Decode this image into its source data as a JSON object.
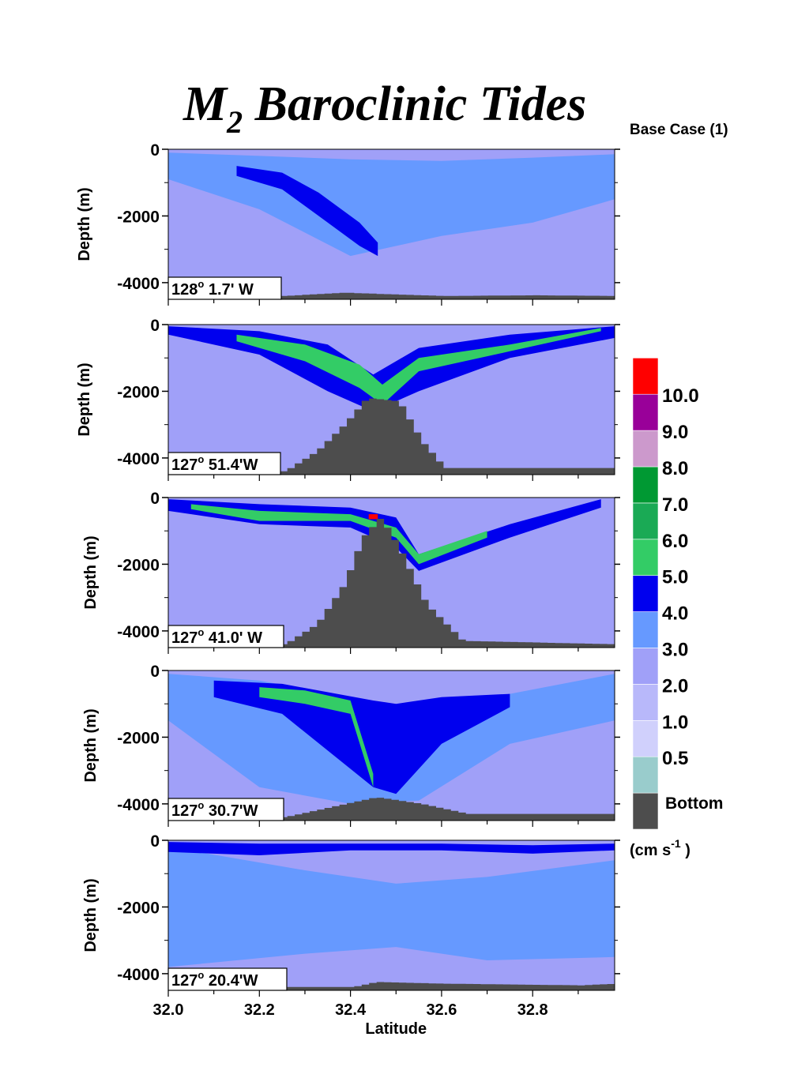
{
  "title": {
    "main": "M",
    "subscript": "2",
    "rest": " Baroclinic Tides"
  },
  "subtitle": "Base Case (1)",
  "colors": {
    "bottom": "#4d4d4d",
    "background": "#a0a0f8"
  },
  "colorbar": {
    "unit_label": "(cm s",
    "unit_exponent": "-1",
    "unit_close": " )",
    "bottom_label": "Bottom",
    "bins": [
      {
        "label": "",
        "color": "#4d4d4d"
      },
      {
        "label": "",
        "color": "#99cccc"
      },
      {
        "label": "0.5",
        "color": "#d0d0fc"
      },
      {
        "label": "1.0",
        "color": "#b8b8fa"
      },
      {
        "label": "2.0",
        "color": "#a0a0f8"
      },
      {
        "label": "3.0",
        "color": "#6699ff"
      },
      {
        "label": "4.0",
        "color": "#0000ee"
      },
      {
        "label": "5.0",
        "color": "#33cc66"
      },
      {
        "label": "6.0",
        "color": "#1aaa55"
      },
      {
        "label": "7.0",
        "color": "#009933"
      },
      {
        "label": "8.0",
        "color": "#cc99cc"
      },
      {
        "label": "9.0",
        "color": "#990099"
      },
      {
        "label": "10.0",
        "color": "#ff0000"
      }
    ]
  },
  "chart_data": [
    {
      "type": "heatmap",
      "xlabel": "",
      "ylabel": "Depth (m)",
      "xlim": [
        32.0,
        32.98
      ],
      "ylim": [
        -4500,
        0
      ],
      "yticks": [
        "0",
        "-2000",
        "-4000"
      ],
      "section_label": {
        "deg": "128",
        "rest": " 1.7' W"
      },
      "bathymetry": {
        "lat": [
          32.0,
          32.25,
          32.38,
          32.48,
          32.6,
          32.8,
          32.98
        ],
        "depth": [
          -4400,
          -4400,
          -4300,
          -4350,
          -4400,
          -4380,
          -4400
        ]
      },
      "bands": [
        {
          "level": "3.0",
          "lat": [
            32.0,
            32.2,
            32.4,
            32.6,
            32.8,
            32.98
          ],
          "top": [
            -100,
            -200,
            -300,
            -350,
            -250,
            -150
          ],
          "bottom": [
            -900,
            -1800,
            -3200,
            -2600,
            -2200,
            -1500
          ]
        },
        {
          "level": "4.0",
          "lat": [
            32.15,
            32.25,
            32.33,
            32.42,
            32.46
          ],
          "top": [
            -500,
            -700,
            -1300,
            -2200,
            -2800
          ],
          "bottom": [
            -800,
            -1200,
            -2000,
            -2900,
            -3200
          ]
        }
      ]
    },
    {
      "type": "heatmap",
      "xlabel": "",
      "ylabel": "Depth (m)",
      "xlim": [
        32.0,
        32.98
      ],
      "ylim": [
        -4500,
        0
      ],
      "yticks": [
        "0",
        "-2000",
        "-4000"
      ],
      "section_label": {
        "deg": "127",
        "rest": " 51.4'W"
      },
      "bathymetry": {
        "lat": [
          32.0,
          32.25,
          32.32,
          32.38,
          32.43,
          32.5,
          32.55,
          32.6,
          32.98
        ],
        "depth": [
          -4400,
          -4400,
          -3800,
          -3000,
          -2200,
          -2300,
          -3500,
          -4300,
          -4300
        ]
      },
      "bands": [
        {
          "level": "4.0",
          "lat": [
            32.0,
            32.2,
            32.35,
            32.45,
            32.55,
            32.75,
            32.98
          ],
          "top": [
            -50,
            -200,
            -600,
            -1500,
            -700,
            -300,
            -50
          ],
          "bottom": [
            -300,
            -900,
            -2000,
            -2600,
            -2000,
            -1000,
            -400
          ]
        },
        {
          "level": "5.0",
          "lat": [
            32.15,
            32.3,
            32.42,
            32.47,
            32.55,
            32.75,
            32.95
          ],
          "top": [
            -300,
            -600,
            -1200,
            -1800,
            -1000,
            -600,
            -100
          ],
          "bottom": [
            -500,
            -1100,
            -1900,
            -2400,
            -1400,
            -800,
            -200
          ]
        }
      ]
    },
    {
      "type": "heatmap",
      "xlabel": "",
      "ylabel": "Depth (m)",
      "xlim": [
        32.0,
        32.98
      ],
      "ylim": [
        -4500,
        0
      ],
      "yticks": [
        "0",
        "-2000",
        "-4000"
      ],
      "section_label": {
        "deg": "127",
        "rest": " 41.0' W"
      },
      "bathymetry": {
        "lat": [
          32.0,
          32.25,
          32.32,
          32.38,
          32.42,
          32.46,
          32.5,
          32.56,
          32.64,
          32.98
        ],
        "depth": [
          -4400,
          -4400,
          -3800,
          -2600,
          -1200,
          -600,
          -1500,
          -3200,
          -4300,
          -4400
        ]
      },
      "bands": [
        {
          "level": "4.0",
          "lat": [
            32.0,
            32.2,
            32.4,
            32.5,
            32.55,
            32.75,
            32.95
          ],
          "top": [
            -50,
            -200,
            -300,
            -600,
            -1700,
            -800,
            -50
          ],
          "bottom": [
            -400,
            -800,
            -900,
            -1500,
            -2200,
            -1200,
            -300
          ]
        },
        {
          "level": "5.0",
          "lat": [
            32.05,
            32.2,
            32.4,
            32.5,
            32.55,
            32.7
          ],
          "top": [
            -200,
            -400,
            -500,
            -900,
            -1700,
            -1000
          ],
          "bottom": [
            -350,
            -700,
            -700,
            -1200,
            -2000,
            -1200
          ]
        },
        {
          "level": "10.0",
          "lat": [
            32.44,
            32.46
          ],
          "top": [
            -500,
            -500
          ],
          "bottom": [
            -650,
            -650
          ]
        }
      ]
    },
    {
      "type": "heatmap",
      "xlabel": "",
      "ylabel": "Depth (m)",
      "xlim": [
        32.0,
        32.98
      ],
      "ylim": [
        -4500,
        0
      ],
      "yticks": [
        "0",
        "-2000",
        "-4000"
      ],
      "section_label": {
        "deg": "127",
        "rest": "  30.7'W"
      },
      "bathymetry": {
        "lat": [
          32.0,
          32.25,
          32.35,
          32.45,
          32.55,
          32.65,
          32.98
        ],
        "depth": [
          -4400,
          -4400,
          -4100,
          -3800,
          -4000,
          -4300,
          -4300
        ]
      },
      "bands": [
        {
          "level": "3.0",
          "lat": [
            32.0,
            32.2,
            32.4,
            32.55,
            32.75,
            32.98
          ],
          "top": [
            -100,
            -300,
            -800,
            -1300,
            -700,
            -100
          ],
          "bottom": [
            -1500,
            -3500,
            -4000,
            -3900,
            -2200,
            -1500
          ]
        },
        {
          "level": "4.0",
          "lat": [
            32.1,
            32.25,
            32.45,
            32.5,
            32.6,
            32.75
          ],
          "top": [
            -300,
            -400,
            -900,
            -1000,
            -800,
            -700
          ],
          "bottom": [
            -800,
            -1300,
            -3500,
            -3700,
            -2200,
            -1100
          ]
        },
        {
          "level": "5.0",
          "lat": [
            32.2,
            32.3,
            32.4,
            32.45
          ],
          "top": [
            -500,
            -600,
            -900,
            -3100
          ],
          "bottom": [
            -800,
            -1000,
            -1300,
            -3500
          ]
        }
      ]
    },
    {
      "type": "heatmap",
      "xlabel": "Latitude",
      "ylabel": "Depth (m)",
      "xlim": [
        32.0,
        32.98
      ],
      "ylim": [
        -4500,
        0
      ],
      "yticks": [
        "0",
        "-2000",
        "-4000"
      ],
      "xticks": [
        "32.0",
        "32.2",
        "32.4",
        "32.6",
        "32.8"
      ],
      "section_label": {
        "deg": "127",
        "rest": " 20.4'W"
      },
      "bathymetry": {
        "lat": [
          32.0,
          32.4,
          32.45,
          32.6,
          32.9,
          32.98
        ],
        "depth": [
          -4400,
          -4400,
          -4250,
          -4300,
          -4350,
          -4300
        ]
      },
      "bands": [
        {
          "level": "3.0",
          "lat": [
            32.0,
            32.3,
            32.5,
            32.7,
            32.98
          ],
          "top": [
            -200,
            -900,
            -1300,
            -1100,
            -600
          ],
          "bottom": [
            -3800,
            -3400,
            -3200,
            -3600,
            -3500
          ]
        },
        {
          "level": "4.0",
          "lat": [
            32.0,
            32.2,
            32.4,
            32.6,
            32.8,
            32.98
          ],
          "top": [
            -50,
            -100,
            -100,
            -100,
            -150,
            -100
          ],
          "bottom": [
            -350,
            -450,
            -300,
            -300,
            -400,
            -300
          ]
        }
      ]
    }
  ]
}
